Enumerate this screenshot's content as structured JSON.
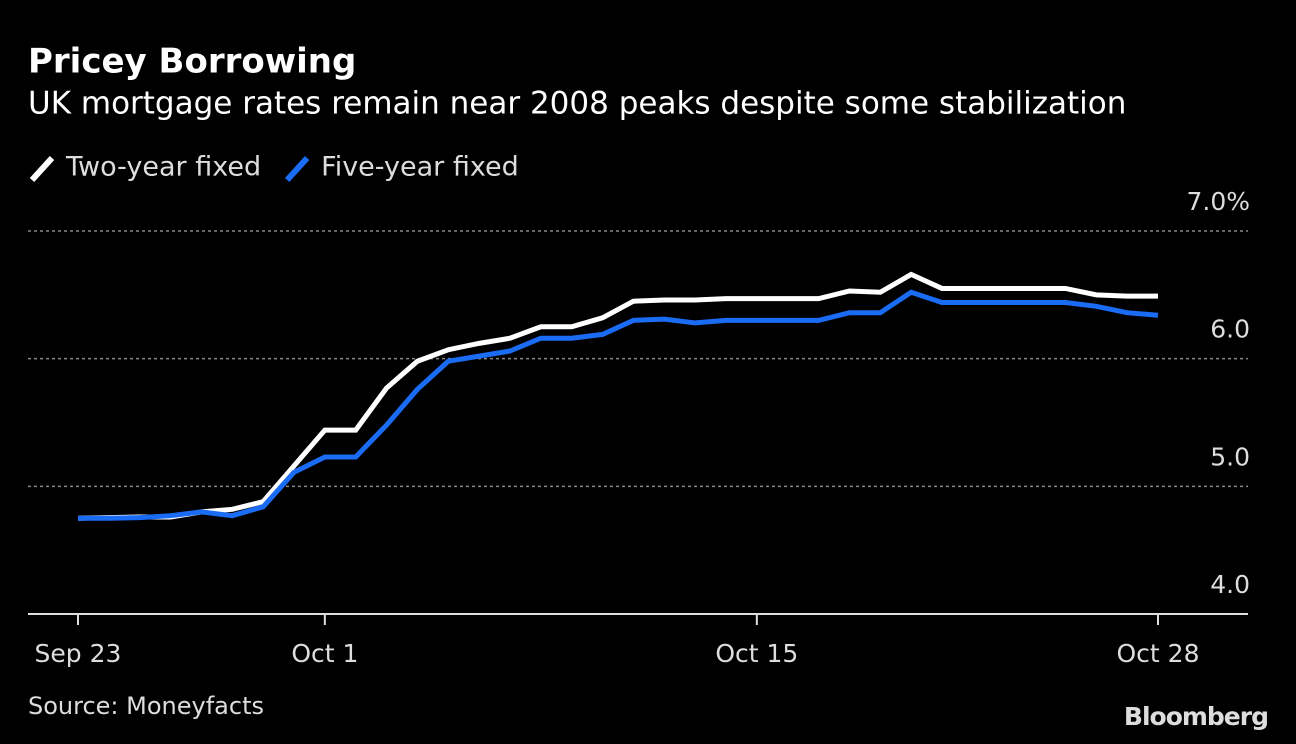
{
  "chart_data": {
    "type": "line",
    "title": "Pricey Borrowing",
    "subtitle": "UK mortgage rates remain near 2008 peaks despite some stabilization",
    "source": "Source: Moneyfacts",
    "brand": "Bloomberg",
    "categories": [
      "Sep 23",
      null,
      null,
      null,
      null,
      null,
      null,
      null,
      "Oct 1",
      null,
      null,
      null,
      null,
      null,
      null,
      null,
      null,
      null,
      null,
      null,
      null,
      null,
      "Oct 15",
      null,
      null,
      null,
      null,
      null,
      null,
      null,
      null,
      null,
      null,
      null,
      null,
      "Oct 28"
    ],
    "series": [
      {
        "name": "Two-year fixed",
        "color": "#ffffff",
        "values": [
          4.75,
          4.755,
          4.76,
          4.76,
          4.8,
          4.82,
          4.88,
          5.16,
          5.44,
          5.44,
          5.77,
          5.98,
          6.07,
          6.12,
          6.16,
          6.25,
          6.25,
          6.32,
          6.45,
          6.46,
          6.46,
          6.47,
          6.47,
          6.47,
          6.47,
          6.53,
          6.52,
          6.66,
          6.55,
          6.55,
          6.55,
          6.55,
          6.55,
          6.5,
          6.49,
          6.49
        ]
      },
      {
        "name": "Five-year fixed",
        "color": "#1a6cf5",
        "values": [
          4.75,
          4.75,
          4.755,
          4.77,
          4.8,
          4.77,
          4.84,
          5.11,
          5.23,
          5.23,
          5.48,
          5.76,
          5.98,
          6.02,
          6.06,
          6.16,
          6.16,
          6.19,
          6.3,
          6.31,
          6.28,
          6.3,
          6.3,
          6.3,
          6.3,
          6.36,
          6.36,
          6.52,
          6.44,
          6.44,
          6.44,
          6.44,
          6.44,
          6.41,
          6.36,
          6.34
        ]
      }
    ],
    "ylim": [
      4,
      7
    ],
    "yticks": [
      {
        "value": 4,
        "label": "4.0"
      },
      {
        "value": 5,
        "label": "5.0"
      },
      {
        "value": 6,
        "label": "6.0"
      },
      {
        "value": 7,
        "label": "7.0%"
      }
    ],
    "grid": true
  }
}
